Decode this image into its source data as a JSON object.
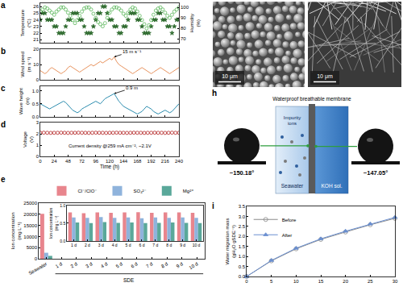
{
  "chart_data": [
    {
      "type": "scatter",
      "panel_label": "a",
      "x": [
        0,
        4,
        8,
        12,
        16,
        20,
        24,
        28,
        32,
        36,
        40,
        44,
        48,
        52,
        56,
        60,
        64,
        68,
        72,
        76,
        80,
        84,
        88,
        92,
        96,
        100,
        104,
        108,
        112,
        116,
        120,
        124,
        128,
        132,
        136,
        140,
        144,
        148,
        152,
        156,
        160,
        164,
        168,
        172,
        176,
        180,
        184,
        188,
        192,
        196,
        200,
        204,
        208,
        212,
        216,
        220,
        224,
        228,
        232,
        236,
        240
      ],
      "series": [
        {
          "color": "#2f6b2f",
          "marker": "star",
          "values": [
            24,
            25,
            25,
            24,
            24,
            24,
            23,
            23,
            22,
            22,
            22,
            23,
            24,
            24,
            25,
            25,
            25,
            24,
            24,
            23,
            22,
            22,
            22,
            23,
            24,
            25,
            25,
            26,
            26,
            25,
            24,
            24,
            23,
            23,
            22,
            22,
            23,
            23,
            24,
            25,
            25,
            25,
            24,
            24,
            23,
            22,
            22,
            22,
            23,
            24,
            24,
            25,
            25,
            24,
            24,
            23,
            23,
            22,
            23,
            24,
            24
          ]
        },
        {
          "color": "#5cb85c",
          "marker": "circle-open",
          "axis": "y2",
          "values": [
            96,
            98,
            100,
            99,
            97,
            95,
            93,
            96,
            98,
            100,
            100,
            98,
            95,
            92,
            88,
            85,
            88,
            92,
            96,
            99,
            100,
            100,
            98,
            94,
            90,
            86,
            84,
            82,
            85,
            90,
            95,
            98,
            100,
            100,
            99,
            97,
            94,
            92,
            95,
            98,
            100,
            99,
            96,
            92,
            88,
            84,
            80,
            83,
            88,
            93,
            97,
            99,
            100,
            98,
            95,
            92,
            90,
            93,
            96,
            98,
            100
          ]
        }
      ],
      "ylabel": "Temperature (°C)",
      "y2label": "Humidity (%)",
      "xlim": [
        0,
        240
      ],
      "xticks": [
        0,
        24,
        48,
        72,
        96,
        120,
        144,
        168,
        192,
        216,
        240
      ],
      "ylim": [
        20.5,
        26.5
      ],
      "yticks": [
        21,
        22,
        23,
        24,
        25,
        26
      ],
      "y2lim": [
        66,
        104
      ],
      "y2ticks": [
        70,
        80,
        90,
        100
      ],
      "tick_labels": "y"
    },
    {
      "type": "line",
      "panel_label": "b",
      "x": [
        0,
        4,
        8,
        12,
        16,
        20,
        24,
        28,
        32,
        36,
        40,
        44,
        48,
        52,
        56,
        60,
        64,
        68,
        72,
        76,
        80,
        84,
        88,
        92,
        96,
        100,
        104,
        108,
        112,
        116,
        120,
        124,
        128,
        132,
        136,
        140,
        144,
        148,
        152,
        156,
        160,
        164,
        168,
        172,
        176,
        180,
        184,
        188,
        192,
        196,
        200,
        204,
        208,
        212,
        216,
        220,
        224,
        228,
        232,
        236,
        240
      ],
      "series": [
        {
          "color": "#e8935e",
          "values": [
            6,
            5,
            4,
            5,
            7,
            8,
            7,
            6,
            5,
            4,
            5,
            6,
            8,
            9,
            8,
            7,
            6,
            5,
            6,
            7,
            8,
            9,
            10,
            9,
            10,
            11,
            12,
            11,
            12,
            13,
            14,
            13,
            15,
            12,
            10,
            9,
            8,
            7,
            6,
            5,
            4,
            5,
            6,
            7,
            8,
            7,
            6,
            5,
            4,
            5,
            6,
            7,
            8,
            7,
            6,
            5,
            4,
            5,
            6,
            7,
            8
          ]
        }
      ],
      "ylabel": "Wind speed (m s⁻¹)",
      "xlim": [
        0,
        240
      ],
      "xticks": [
        0,
        24,
        48,
        72,
        96,
        120,
        144,
        168,
        192,
        216,
        240
      ],
      "ylim": [
        0,
        20
      ],
      "yticks": [
        0,
        10,
        20
      ],
      "annotations": [
        "15 m s⁻¹"
      ],
      "tick_labels": "y"
    },
    {
      "type": "line",
      "panel_label": "c",
      "x": [
        0,
        4,
        8,
        12,
        16,
        20,
        24,
        28,
        32,
        36,
        40,
        44,
        48,
        52,
        56,
        60,
        64,
        68,
        72,
        76,
        80,
        84,
        88,
        92,
        96,
        100,
        104,
        108,
        112,
        116,
        120,
        124,
        128,
        132,
        136,
        140,
        144,
        148,
        152,
        156,
        160,
        164,
        168,
        172,
        176,
        180,
        184,
        188,
        192,
        196,
        200,
        204,
        208,
        212,
        216,
        220,
        224,
        228,
        232,
        236,
        240
      ],
      "series": [
        {
          "color": "#2b8cae",
          "values": [
            0.5,
            0.45,
            0.4,
            0.35,
            0.3,
            0.35,
            0.4,
            0.45,
            0.5,
            0.55,
            0.6,
            0.55,
            0.45,
            0.35,
            0.25,
            0.2,
            0.15,
            0.2,
            0.3,
            0.35,
            0.4,
            0.45,
            0.5,
            0.55,
            0.6,
            0.55,
            0.5,
            0.6,
            0.7,
            0.75,
            0.8,
            0.85,
            0.9,
            0.75,
            0.6,
            0.5,
            0.4,
            0.35,
            0.3,
            0.25,
            0.2,
            0.15,
            0.1,
            0.15,
            0.2,
            0.3,
            0.4,
            0.35,
            0.3,
            0.2,
            0.15,
            0.1,
            0.15,
            0.2,
            0.25,
            0.2,
            0.15,
            0.2,
            0.3,
            0.4,
            0.5
          ]
        }
      ],
      "ylabel": "Wave height (m)",
      "xlim": [
        0,
        240
      ],
      "xticks": [
        0,
        24,
        48,
        72,
        96,
        120,
        144,
        168,
        192,
        216,
        240
      ],
      "ylim": [
        0,
        1.2
      ],
      "yticks": [
        {
          "value": 0,
          "label": "0.0"
        },
        {
          "value": 0.5,
          "label": "0.5"
        },
        {
          "value": 1,
          "label": "1.0"
        }
      ],
      "annotations": [
        "0.9 m"
      ],
      "tick_labels": "y"
    },
    {
      "type": "scatter",
      "panel_label": "d",
      "x": [
        0,
        6,
        12,
        18,
        24,
        30,
        36,
        42,
        48,
        54,
        60,
        66,
        72,
        78,
        84,
        90,
        96,
        102,
        108,
        114,
        120,
        126,
        132,
        138,
        144,
        150,
        156,
        162,
        168,
        174,
        180,
        186,
        192,
        198,
        204,
        210,
        216,
        222,
        228,
        234,
        240
      ],
      "series": [
        {
          "color": "#b22222",
          "marker": "circle-open",
          "values": [
            2.1,
            2.11,
            2.1,
            2.09,
            2.1,
            2.1,
            2.11,
            2.1,
            2.09,
            2.1,
            2.1,
            2.11,
            2.1,
            2.1,
            2.09,
            2.1,
            2.11,
            2.1,
            2.1,
            2.09,
            2.1,
            2.1,
            2.11,
            2.1,
            2.1,
            2.09,
            2.1,
            2.11,
            2.1,
            2.1,
            2.09,
            2.1,
            2.1,
            2.11,
            2.1,
            2.1,
            2.09,
            2.1,
            2.11,
            2.1,
            2.1
          ]
        }
      ],
      "xlabel": "Time (h)",
      "ylabel": "Voltage (V)",
      "xlim": [
        0,
        240
      ],
      "xticks": [
        0,
        24,
        48,
        72,
        96,
        120,
        144,
        168,
        192,
        216,
        240
      ],
      "ylim": [
        0,
        3
      ],
      "yticks": [
        0,
        1,
        2,
        3
      ],
      "annotations": [
        "Current density @259 mA cm⁻², ~2.1V"
      ]
    },
    {
      "type": "bar",
      "panel_label": "e",
      "categories": [
        "Seawater",
        "1 d",
        "2 d",
        "3 d",
        "4 d",
        "5 d",
        "6 d",
        "7 d",
        "8 d",
        "9 d",
        "10 d"
      ],
      "series": [
        {
          "name": "Cl⁻/ClO⁻",
          "color": "#e8858d",
          "values": [
            20200,
            0.8,
            0.78,
            0.8,
            0.79,
            0.8,
            0.81,
            0.79,
            0.8,
            0.8,
            0.79
          ]
        },
        {
          "name": "SO₄²⁻",
          "color": "#8fb3dc",
          "values": [
            2700,
            0.66,
            0.65,
            0.67,
            0.65,
            0.66,
            0.64,
            0.66,
            0.65,
            0.66,
            0.65
          ]
        },
        {
          "name": "Mg²⁺",
          "color": "#5aa89a",
          "values": [
            1300,
            0.52,
            0.5,
            0.53,
            0.51,
            0.52,
            0.5,
            0.51,
            0.52,
            0.51,
            0.5
          ]
        }
      ],
      "ylabel": "Ion concentration (mg L⁻¹)",
      "ylim": [
        0,
        25000
      ],
      "yticks": [
        0,
        5000,
        10000,
        15000,
        20000,
        25000
      ],
      "annotations": [
        "SDE"
      ],
      "legend": "top"
    },
    {
      "type": "bar",
      "categories": [
        "1 d",
        "2 d",
        "3 d",
        "4 d",
        "5 d",
        "6 d",
        "7 d",
        "8 d",
        "9 d",
        "10 d"
      ],
      "series": [
        {
          "color": "#e8858d",
          "values": [
            0.8,
            0.78,
            0.8,
            0.79,
            0.8,
            0.81,
            0.79,
            0.8,
            0.8,
            0.79
          ]
        },
        {
          "color": "#8fb3dc",
          "values": [
            0.66,
            0.65,
            0.67,
            0.65,
            0.66,
            0.64,
            0.66,
            0.65,
            0.66,
            0.65
          ]
        },
        {
          "color": "#5aa89a",
          "values": [
            0.52,
            0.5,
            0.53,
            0.51,
            0.52,
            0.5,
            0.51,
            0.52,
            0.51,
            0.5
          ]
        }
      ],
      "ylabel": "Ion concentration (mg L⁻¹)",
      "ylim": [
        0,
        1
      ],
      "yticks": [
        {
          "value": 0,
          "label": "0.0"
        },
        {
          "value": 0.5,
          "label": "0.5"
        },
        {
          "value": 1,
          "label": "1.0"
        }
      ]
    },
    {
      "type": "line",
      "panel_label": "i",
      "x": [
        0,
        5,
        10,
        15,
        20,
        25,
        30
      ],
      "series": [
        {
          "name": "Before",
          "color": "#8a8a8a",
          "marker": "circle-open",
          "line_style": "solid",
          "values": [
            0,
            0.78,
            1.38,
            1.85,
            2.22,
            2.58,
            2.9
          ]
        },
        {
          "name": "After",
          "color": "#6a8fd0",
          "marker": "triangle-up",
          "line_style": "solid",
          "values": [
            0,
            0.8,
            1.41,
            1.88,
            2.26,
            2.62,
            2.95
          ]
        }
      ],
      "ylabel": "Water migration mass (gH₂O gSDE⁻¹)",
      "xlim": [
        0,
        30
      ],
      "xticks": [
        0,
        5,
        10,
        15,
        20,
        25,
        30
      ],
      "ylim": [
        0,
        3.5
      ],
      "yticks": [
        {
          "value": 0,
          "label": "0.0"
        },
        {
          "value": 0.5,
          "label": "0.5"
        },
        {
          "value": 1,
          "label": "1.0"
        },
        {
          "value": 1.5,
          "label": "1.5"
        },
        {
          "value": 2,
          "label": "2.0"
        },
        {
          "value": 2.5,
          "label": "2.5"
        },
        {
          "value": 3,
          "label": "3.0"
        },
        {
          "value": 3.5,
          "label": "3.5"
        }
      ],
      "legend": "top left"
    }
  ],
  "images": [
    {
      "scale_bar": "10 μm"
    },
    {
      "scale_bar": "10 μm"
    }
  ],
  "diagram": {
    "panel_label": "h",
    "membrane": "Waterproof breathable membrane",
    "left": "Seawater",
    "right": "KOH sol.",
    "ions": "Impurity ions",
    "contact_angles": [
      {
        "value": 150.18,
        "label": "~150.18°"
      },
      {
        "value": 147.05,
        "label": "~147.05°"
      }
    ]
  }
}
